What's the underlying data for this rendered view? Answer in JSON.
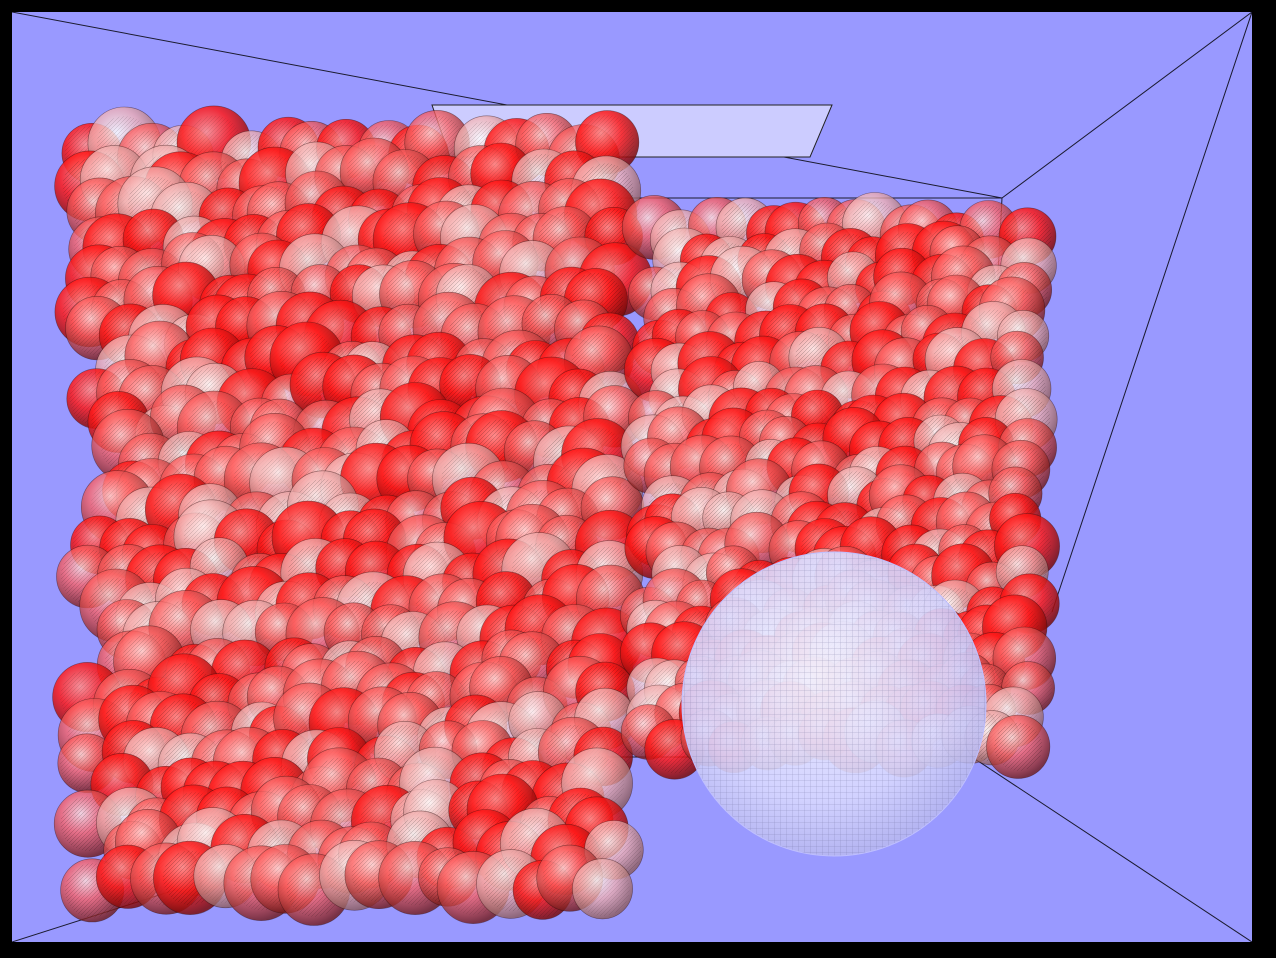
{
  "scene": {
    "background_color": "#9999ff",
    "frame_color": "#000000",
    "edge_color": "#1a1a2e",
    "panel_color": "#ccccff",
    "particle_base_color": "#ff0000",
    "particle_highlight_color": "#ffffff",
    "probe_sphere_color": "#e0e0ff",
    "wire_color": "#222222",
    "objects": [
      {
        "kind": "box-room",
        "name": "container"
      },
      {
        "kind": "ceiling-panel",
        "name": "light-panel"
      },
      {
        "kind": "particle-cluster",
        "name": "left-cylinder"
      },
      {
        "kind": "particle-cluster",
        "name": "right-cylinder"
      },
      {
        "kind": "wire-sphere",
        "name": "probe-sphere"
      }
    ]
  }
}
